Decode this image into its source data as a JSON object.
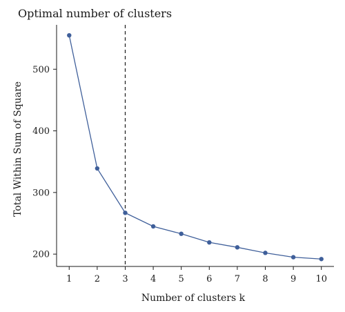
{
  "chart_data": {
    "type": "line",
    "title": "Optimal number of clusters",
    "xlabel": "Number of clusters k",
    "ylabel": "Total Within Sum of Square",
    "x": [
      1,
      2,
      3,
      4,
      5,
      6,
      7,
      8,
      9,
      10
    ],
    "series": [
      {
        "values": [
          555,
          339,
          267,
          245,
          233,
          219,
          211,
          202,
          195,
          192
        ]
      }
    ],
    "x_ticks": [
      "1",
      "2",
      "3",
      "4",
      "5",
      "6",
      "7",
      "8",
      "9",
      "10"
    ],
    "y_ticks": [
      200,
      300,
      400,
      500
    ],
    "xlim": [
      0.55,
      10.45
    ],
    "ylim": [
      180,
      572
    ],
    "reference_line_x": 3,
    "grid": false,
    "series_color": "#3f5f9a"
  }
}
